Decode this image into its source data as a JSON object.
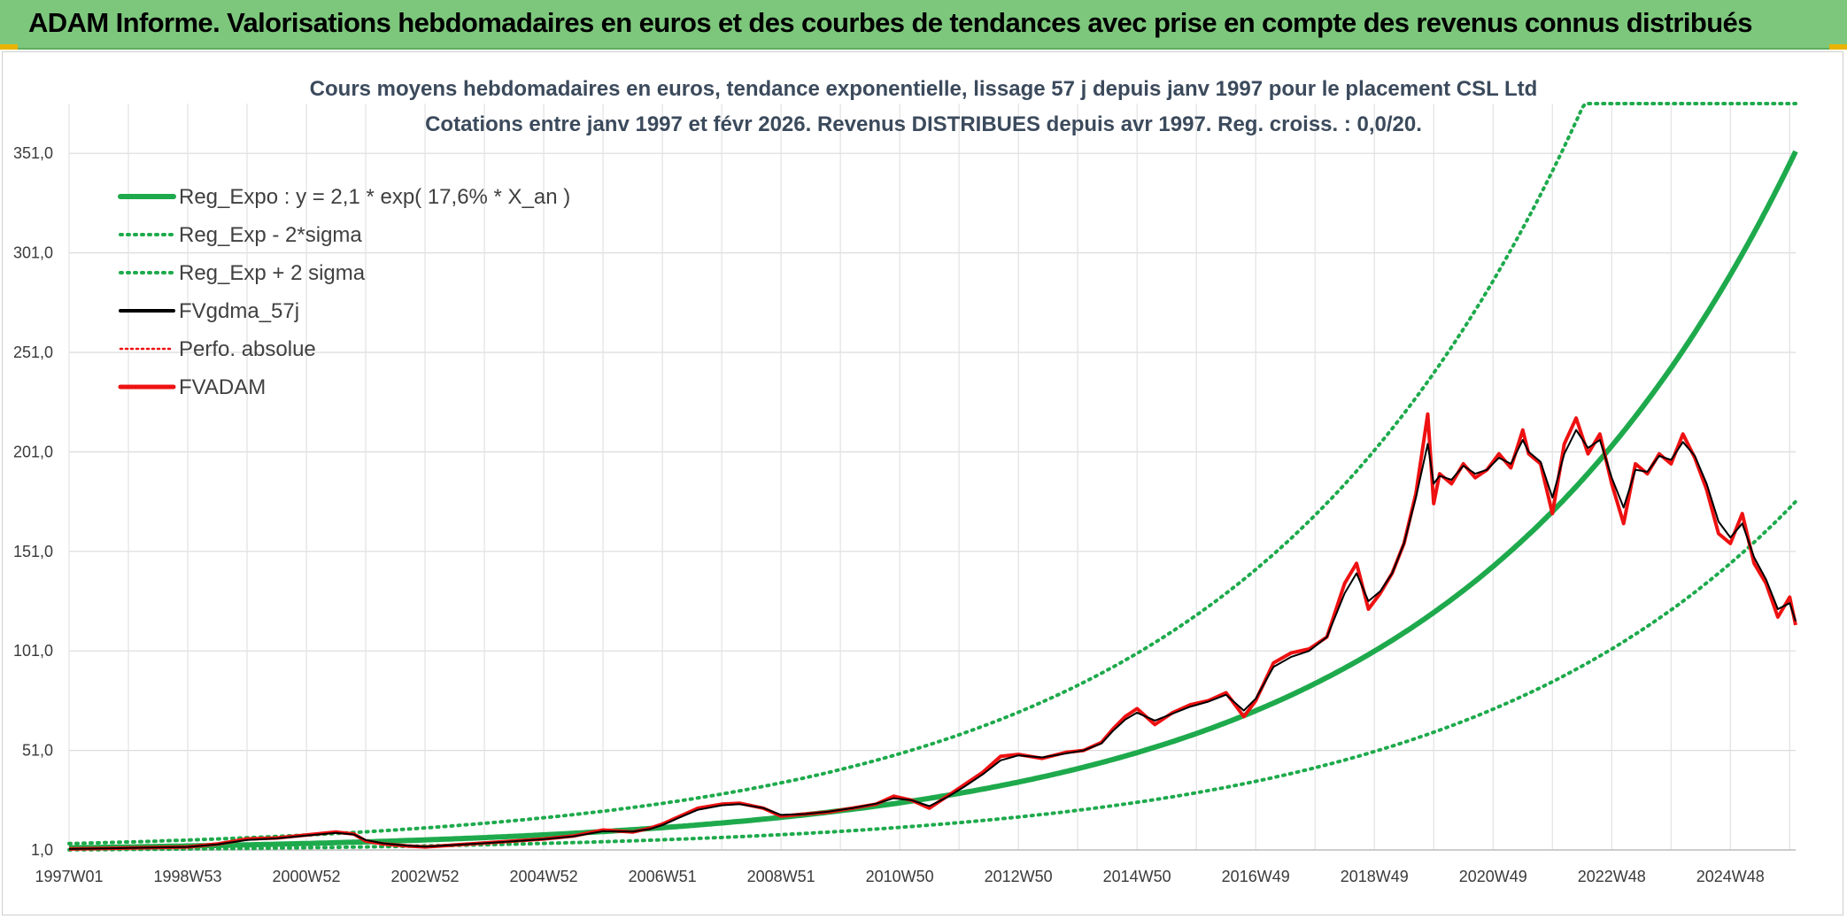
{
  "header": {
    "title": "ADAM Informe. Valorisations hebdomadaires en euros et des courbes de tendances avec prise en compte des revenus connus distribués"
  },
  "colors": {
    "banner": "#7dc77d",
    "trend_green": "#1eaa4c",
    "price_red": "#ee1111",
    "ma_black": "#000000"
  },
  "chart_data": {
    "type": "line",
    "title_line1": "Cours moyens hebdomadaires en euros, tendance exponentielle, lissage 57 j depuis janv 1997 pour le placement CSL Ltd",
    "title_line2": "Cotations entre janv 1997 et févr 2026. Revenus DISTRIBUES depuis avr 1997. Reg. croiss. : 0,0/20.",
    "x_start_year": 1997.0,
    "x_end_year": 2026.1,
    "x_tick_labels": [
      "1997W01",
      "1998W53",
      "2000W52",
      "2002W52",
      "2004W52",
      "2006W51",
      "2008W51",
      "2010W50",
      "2012W50",
      "2014W50",
      "2016W49",
      "2018W49",
      "2020W49",
      "2022W48",
      "2024W48"
    ],
    "y_ticks": [
      1,
      51,
      101,
      151,
      201,
      251,
      301,
      351
    ],
    "y_tick_labels": [
      "1,0",
      "51,0",
      "101,0",
      "151,0",
      "201,0",
      "251,0",
      "301,0",
      "351,0"
    ],
    "ylim": [
      1,
      376
    ],
    "legend": [
      "Reg_Expo : y = 2,1 * exp( 17,6% *  X_an )",
      "Reg_Exp - 2*sigma",
      "Reg_Exp + 2 sigma",
      "FVgdma_57j",
      "Perfo. absolue",
      "FVADAM"
    ],
    "regression": {
      "a": 2.1,
      "growth_rate": 0.176,
      "lower_factor": 0.5,
      "upper_factor": 2.0
    },
    "series": [
      {
        "name": "FVADAM",
        "x": [
          1997.0,
          1998.0,
          1999.0,
          1999.5,
          2000.0,
          2000.5,
          2001.0,
          2001.5,
          2001.8,
          2002.0,
          2002.3,
          2002.7,
          2003.0,
          2003.5,
          2004.0,
          2004.5,
          2005.0,
          2005.5,
          2006.0,
          2006.5,
          2006.8,
          2007.0,
          2007.3,
          2007.6,
          2008.0,
          2008.3,
          2008.7,
          2009.0,
          2009.4,
          2009.8,
          2010.2,
          2010.6,
          2010.9,
          2011.2,
          2011.5,
          2011.8,
          2012.1,
          2012.4,
          2012.7,
          2013.0,
          2013.4,
          2013.8,
          2014.1,
          2014.4,
          2014.6,
          2014.8,
          2015.0,
          2015.3,
          2015.6,
          2015.9,
          2016.2,
          2016.5,
          2016.8,
          2017.0,
          2017.3,
          2017.6,
          2017.9,
          2018.2,
          2018.5,
          2018.7,
          2018.9,
          2019.1,
          2019.3,
          2019.5,
          2019.7,
          2019.9,
          2020.0,
          2020.1,
          2020.3,
          2020.5,
          2020.7,
          2020.9,
          2021.1,
          2021.3,
          2021.5,
          2021.6,
          2021.8,
          2022.0,
          2022.2,
          2022.4,
          2022.6,
          2022.8,
          2023.0,
          2023.2,
          2023.4,
          2023.6,
          2023.8,
          2024.0,
          2024.2,
          2024.4,
          2024.6,
          2024.8,
          2025.0,
          2025.2,
          2025.4,
          2025.6,
          2025.8,
          2026.0,
          2026.1
        ],
        "values": [
          1.5,
          2.0,
          2.5,
          4.0,
          6.5,
          7.0,
          8.5,
          10.0,
          9.0,
          5.5,
          4.0,
          3.0,
          2.5,
          3.5,
          4.5,
          5.5,
          6.5,
          8.0,
          11.0,
          10.0,
          12.0,
          14.0,
          18.0,
          22.0,
          24.0,
          24.5,
          22.0,
          18.0,
          19.0,
          20.0,
          22.0,
          24.0,
          28.0,
          26.0,
          22.0,
          28.0,
          34.0,
          40.0,
          48.0,
          49.0,
          47.0,
          50.0,
          51.0,
          55.0,
          62.0,
          68.0,
          72.0,
          64.0,
          70.0,
          74.0,
          76.0,
          80.0,
          68.0,
          76.0,
          95.0,
          100.0,
          102.0,
          108.0,
          135.0,
          145.0,
          122.0,
          130.0,
          140.0,
          155.0,
          180.0,
          220.0,
          175.0,
          190.0,
          185.0,
          195.0,
          188.0,
          192.0,
          200.0,
          193.0,
          212.0,
          200.0,
          195.0,
          170.0,
          205.0,
          218.0,
          200.0,
          210.0,
          185.0,
          165.0,
          195.0,
          190.0,
          200.0,
          195.0,
          210.0,
          198.0,
          182.0,
          160.0,
          155.0,
          170.0,
          145.0,
          135.0,
          118.0,
          128.0,
          114.0
        ]
      },
      {
        "name": "FVgdma_57j",
        "x": [
          1997.0,
          1998.0,
          1999.0,
          1999.5,
          2000.0,
          2000.5,
          2001.0,
          2001.5,
          2001.8,
          2002.0,
          2002.3,
          2002.7,
          2003.0,
          2003.5,
          2004.0,
          2004.5,
          2005.0,
          2005.5,
          2006.0,
          2006.5,
          2006.8,
          2007.0,
          2007.3,
          2007.6,
          2008.0,
          2008.3,
          2008.7,
          2009.0,
          2009.4,
          2009.8,
          2010.2,
          2010.6,
          2010.9,
          2011.2,
          2011.5,
          2011.8,
          2012.1,
          2012.4,
          2012.7,
          2013.0,
          2013.4,
          2013.8,
          2014.1,
          2014.4,
          2014.6,
          2014.8,
          2015.0,
          2015.3,
          2015.6,
          2015.9,
          2016.2,
          2016.5,
          2016.8,
          2017.0,
          2017.3,
          2017.6,
          2017.9,
          2018.2,
          2018.5,
          2018.7,
          2018.9,
          2019.1,
          2019.3,
          2019.5,
          2019.7,
          2019.9,
          2020.0,
          2020.1,
          2020.3,
          2020.5,
          2020.7,
          2020.9,
          2021.1,
          2021.3,
          2021.5,
          2021.6,
          2021.8,
          2022.0,
          2022.2,
          2022.4,
          2022.6,
          2022.8,
          2023.0,
          2023.2,
          2023.4,
          2023.6,
          2023.8,
          2024.0,
          2024.2,
          2024.4,
          2024.6,
          2024.8,
          2025.0,
          2025.2,
          2025.4,
          2025.6,
          2025.8,
          2026.0,
          2026.1
        ],
        "values": [
          1.5,
          2.0,
          2.5,
          3.8,
          6.0,
          6.8,
          8.2,
          9.6,
          8.8,
          6.0,
          4.3,
          3.2,
          2.7,
          3.5,
          4.4,
          5.4,
          6.4,
          7.8,
          10.4,
          10.2,
          11.6,
          13.5,
          17.4,
          21.2,
          23.4,
          24.0,
          22.1,
          18.6,
          19.0,
          20.2,
          22.0,
          24.2,
          27.0,
          26.0,
          23.0,
          27.5,
          33.0,
          39.0,
          46.0,
          48.5,
          47.5,
          49.5,
          51.0,
          54.5,
          61.0,
          66.5,
          70.0,
          66.0,
          69.5,
          73.0,
          75.5,
          79.0,
          71.0,
          77.0,
          93.0,
          98.0,
          101.0,
          108.0,
          130.0,
          140.0,
          126.0,
          131.0,
          140.0,
          155.0,
          178.0,
          205.0,
          185.0,
          189.0,
          187.0,
          194.0,
          190.0,
          192.0,
          198.0,
          195.0,
          207.0,
          201.0,
          196.0,
          178.0,
          200.0,
          212.0,
          203.0,
          207.0,
          188.0,
          173.0,
          192.0,
          191.0,
          199.0,
          197.0,
          206.0,
          199.0,
          185.0,
          166.0,
          158.0,
          165.0,
          148.0,
          137.0,
          122.0,
          125.0,
          116.0
        ]
      }
    ]
  }
}
